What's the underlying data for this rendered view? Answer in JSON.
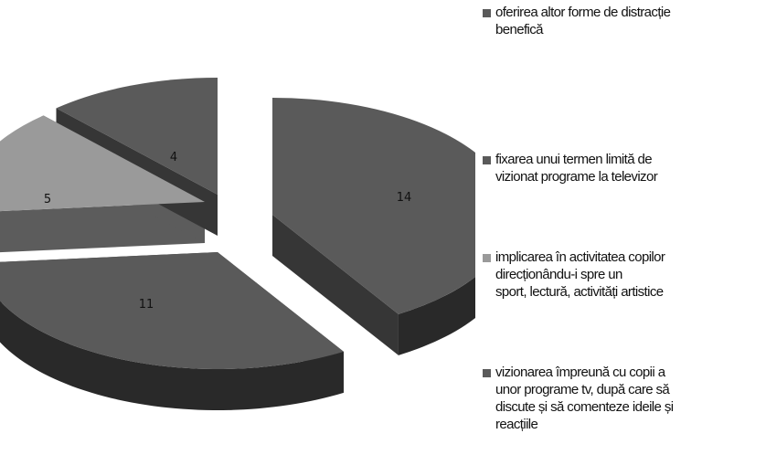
{
  "chart_data": {
    "type": "pie",
    "title": "",
    "style": "3d-exploded",
    "legend_position": "right",
    "slices": [
      {
        "label": "oferirea altor forme de distracție\nbenefică",
        "value": 14,
        "color": "#5a5a5a"
      },
      {
        "label": "fixarea unui termen limită de\nvizionat programe la televizor",
        "value": 11,
        "color": "#5a5a5a"
      },
      {
        "label": "implicarea în activitatea copilor\ndirecționându-i spre un\nsport, lectură, activități artistice",
        "value": 5,
        "color": "#9a9a9a"
      },
      {
        "label": "vizionarea împreună cu copii a\nunor programe tv, după care să\ndiscute și să comenteze ideile și\nreacțiile",
        "value": 4,
        "color": "#5a5a5a"
      }
    ]
  }
}
